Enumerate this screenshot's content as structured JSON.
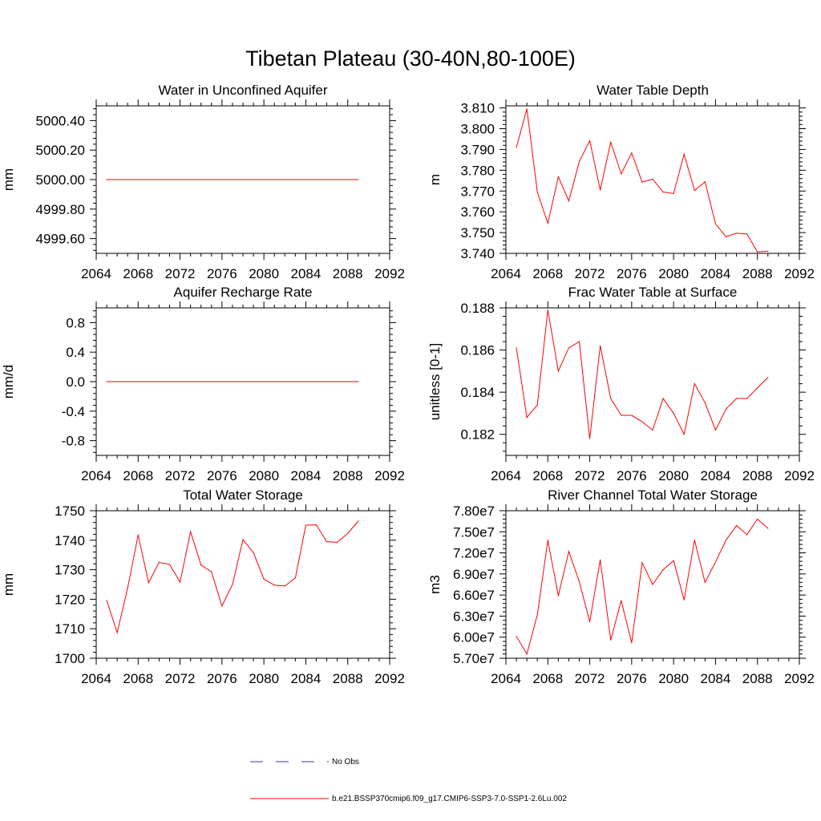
{
  "figure": {
    "title": "Tibetan Plateau (30-40N,80-100E)"
  },
  "legend": {
    "placement": "bottom-center",
    "items": [
      {
        "label": "No Obs",
        "color": "#3a3aa8",
        "style": "dashed"
      },
      {
        "label": "b.e21.BSSP370cmip6.f09_g17.CMIP6-SSP3-7.0-SSP1-2.6Lu.002",
        "color": "#ff0000",
        "style": "solid"
      }
    ]
  },
  "chart_data": [
    {
      "type": "line",
      "title": "Water in Unconfined Aquifer",
      "ylabel": "mm",
      "xlim": [
        2064,
        2092
      ],
      "ylim": [
        4999.5,
        5000.5
      ],
      "xticks": [
        "2064",
        "2068",
        "2072",
        "2076",
        "2080",
        "2084",
        "2088",
        "2092"
      ],
      "yticks": [
        4999.6,
        4999.8,
        5000.0,
        5000.2,
        5000.4
      ],
      "yticklabels": [
        "4999.60",
        "4999.80",
        "5000.00",
        "5000.20",
        "5000.40"
      ],
      "grid": false,
      "color": "#ff0000",
      "x": [
        2065,
        2066,
        2067,
        2068,
        2069,
        2070,
        2071,
        2072,
        2073,
        2074,
        2075,
        2076,
        2077,
        2078,
        2079,
        2080,
        2081,
        2082,
        2083,
        2084,
        2085,
        2086,
        2087,
        2088,
        2089
      ],
      "values": [
        5000,
        5000,
        5000,
        5000,
        5000,
        5000,
        5000,
        5000,
        5000,
        5000,
        5000,
        5000,
        5000,
        5000,
        5000,
        5000,
        5000,
        5000,
        5000,
        5000,
        5000,
        5000,
        5000,
        5000,
        5000
      ]
    },
    {
      "type": "line",
      "title": "Water Table Depth",
      "ylabel": "m",
      "xlim": [
        2064,
        2092
      ],
      "ylim": [
        3.74,
        3.811
      ],
      "xticks": [
        "2064",
        "2068",
        "2072",
        "2076",
        "2080",
        "2084",
        "2088",
        "2092"
      ],
      "yticks": [
        3.74,
        3.75,
        3.76,
        3.77,
        3.78,
        3.79,
        3.8,
        3.81
      ],
      "yticklabels": [
        "3.740",
        "3.750",
        "3.760",
        "3.770",
        "3.780",
        "3.790",
        "3.800",
        "3.810"
      ],
      "grid": false,
      "color": "#ff0000",
      "x": [
        2065,
        2066,
        2067,
        2068,
        2069,
        2070,
        2071,
        2072,
        2073,
        2074,
        2075,
        2076,
        2077,
        2078,
        2079,
        2080,
        2081,
        2082,
        2083,
        2084,
        2085,
        2086,
        2087,
        2088,
        2089
      ],
      "values": [
        3.791,
        3.8095,
        3.7695,
        3.7545,
        3.7768,
        3.7652,
        3.7842,
        3.7942,
        3.7705,
        3.7935,
        3.7783,
        3.7883,
        3.7743,
        3.7757,
        3.7695,
        3.7688,
        3.7877,
        3.7703,
        3.7744,
        3.7542,
        3.748,
        3.7497,
        3.7493,
        3.7407,
        3.741
      ]
    },
    {
      "type": "line",
      "title": "Aquifer Recharge Rate",
      "ylabel": "mm/d",
      "xlim": [
        2064,
        2092
      ],
      "ylim": [
        -1.0,
        1.0
      ],
      "xticks": [
        "2064",
        "2068",
        "2072",
        "2076",
        "2080",
        "2084",
        "2088",
        "2092"
      ],
      "yticks": [
        -0.8,
        -0.4,
        0.0,
        0.4,
        0.8
      ],
      "yticklabels": [
        "-0.8",
        "-0.4",
        "0.0",
        "0.4",
        "0.8"
      ],
      "grid": false,
      "color": "#ff0000",
      "x": [
        2065,
        2066,
        2067,
        2068,
        2069,
        2070,
        2071,
        2072,
        2073,
        2074,
        2075,
        2076,
        2077,
        2078,
        2079,
        2080,
        2081,
        2082,
        2083,
        2084,
        2085,
        2086,
        2087,
        2088,
        2089
      ],
      "values": [
        0,
        0,
        0,
        0,
        0,
        0,
        0,
        0,
        0,
        0,
        0,
        0,
        0,
        0,
        0,
        0,
        0,
        0,
        0,
        0,
        0,
        0,
        0,
        0,
        0
      ]
    },
    {
      "type": "line",
      "title": "Frac Water Table at Surface",
      "ylabel": "unitless [0-1]",
      "xlim": [
        2064,
        2092
      ],
      "ylim": [
        0.181,
        0.188
      ],
      "xticks": [
        "2064",
        "2068",
        "2072",
        "2076",
        "2080",
        "2084",
        "2088",
        "2092"
      ],
      "yticks": [
        0.182,
        0.184,
        0.186,
        0.188
      ],
      "yticklabels": [
        "0.182",
        "0.184",
        "0.186",
        "0.188"
      ],
      "grid": false,
      "color": "#ff0000",
      "x": [
        2065,
        2066,
        2067,
        2068,
        2069,
        2070,
        2071,
        2072,
        2073,
        2074,
        2075,
        2076,
        2077,
        2078,
        2079,
        2080,
        2081,
        2082,
        2083,
        2084,
        2085,
        2086,
        2087,
        2088,
        2089
      ],
      "values": [
        0.1861,
        0.1828,
        0.1834,
        0.1879,
        0.185,
        0.1861,
        0.1864,
        0.1818,
        0.1862,
        0.1837,
        0.1829,
        0.1829,
        0.1826,
        0.1822,
        0.1837,
        0.183,
        0.182,
        0.1844,
        0.1835,
        0.1822,
        0.1832,
        0.1837,
        0.1837,
        0.1842,
        0.1847
      ]
    },
    {
      "type": "line",
      "title": "Total Water Storage",
      "ylabel": "mm",
      "xlim": [
        2064,
        2092
      ],
      "ylim": [
        1700,
        1750
      ],
      "xticks": [
        "2064",
        "2068",
        "2072",
        "2076",
        "2080",
        "2084",
        "2088",
        "2092"
      ],
      "yticks": [
        1700,
        1710,
        1720,
        1730,
        1740,
        1750
      ],
      "yticklabels": [
        "1700",
        "1710",
        "1720",
        "1730",
        "1740",
        "1750"
      ],
      "grid": false,
      "color": "#ff0000",
      "x": [
        2065,
        2066,
        2067,
        2068,
        2069,
        2070,
        2071,
        2072,
        2073,
        2074,
        2075,
        2076,
        2077,
        2078,
        2079,
        2080,
        2081,
        2082,
        2083,
        2084,
        2085,
        2086,
        2087,
        2088,
        2089
      ],
      "values": [
        1719.6,
        1708.7,
        1723.8,
        1741.8,
        1725.6,
        1732.5,
        1731.8,
        1725.8,
        1742.9,
        1731.6,
        1729.3,
        1717.7,
        1725.0,
        1740.2,
        1735.8,
        1726.8,
        1724.8,
        1724.5,
        1727.2,
        1745.1,
        1745.2,
        1739.5,
        1739.3,
        1742.3,
        1746.5
      ]
    },
    {
      "type": "line",
      "title": "River Channel Total Water Storage",
      "ylabel": "m3",
      "xlim": [
        2064,
        2092
      ],
      "ylim": [
        57000000.0,
        78000000.0
      ],
      "xticks": [
        "2064",
        "2068",
        "2072",
        "2076",
        "2080",
        "2084",
        "2088",
        "2092"
      ],
      "yticks": [
        57000000.0,
        60000000.0,
        63000000.0,
        66000000.0,
        69000000.0,
        72000000.0,
        75000000.0,
        78000000.0
      ],
      "yticklabels": [
        "5.70e7",
        "6.00e7",
        "6.30e7",
        "6.60e7",
        "6.90e7",
        "7.20e7",
        "7.50e7",
        "7.80e7"
      ],
      "grid": false,
      "color": "#ff0000",
      "x": [
        2065,
        2066,
        2067,
        2068,
        2069,
        2070,
        2071,
        2072,
        2073,
        2074,
        2075,
        2076,
        2077,
        2078,
        2079,
        2080,
        2081,
        2082,
        2083,
        2084,
        2085,
        2086,
        2087,
        2088,
        2089
      ],
      "values": [
        60100000.0,
        57600000.0,
        63200000.0,
        73800000.0,
        65900000.0,
        72200000.0,
        67900000.0,
        62200000.0,
        71000000.0,
        59600000.0,
        65200000.0,
        59200000.0,
        70600000.0,
        67500000.0,
        69600000.0,
        70900000.0,
        65300000.0,
        73800000.0,
        67800000.0,
        70700000.0,
        73800000.0,
        75900000.0,
        74600000.0,
        76800000.0,
        75500000.0
      ]
    }
  ]
}
